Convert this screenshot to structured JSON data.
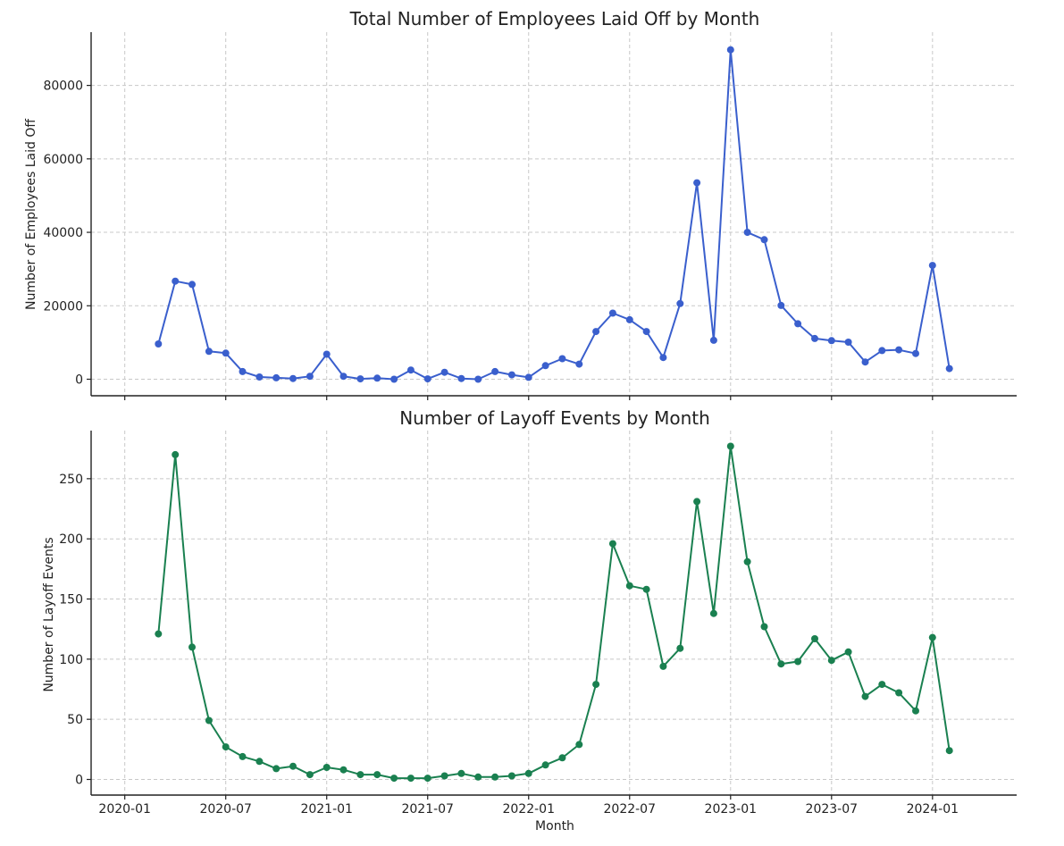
{
  "figure": {
    "xlabel": "Month"
  },
  "x_tick_labels": [
    "2020-01",
    "2020-07",
    "2021-01",
    "2021-07",
    "2022-01",
    "2022-07",
    "2023-01",
    "2023-07",
    "2024-01"
  ],
  "chart_data": [
    {
      "type": "line",
      "title": "Total Number of Employees Laid Off by Month",
      "xlabel": "",
      "ylabel": "Number of Employees Laid Off",
      "color": "#3a5fcd",
      "ylim": [
        -4500,
        94500
      ],
      "yticks": [
        0,
        20000,
        40000,
        60000,
        80000
      ],
      "grid": true,
      "x": [
        "2020-03",
        "2020-04",
        "2020-05",
        "2020-06",
        "2020-07",
        "2020-08",
        "2020-09",
        "2020-10",
        "2020-11",
        "2020-12",
        "2021-01",
        "2021-02",
        "2021-03",
        "2021-04",
        "2021-05",
        "2021-06",
        "2021-07",
        "2021-08",
        "2021-09",
        "2021-10",
        "2021-11",
        "2021-12",
        "2022-01",
        "2022-02",
        "2022-03",
        "2022-04",
        "2022-05",
        "2022-06",
        "2022-07",
        "2022-08",
        "2022-09",
        "2022-10",
        "2022-11",
        "2022-12",
        "2023-01",
        "2023-02",
        "2023-03",
        "2023-04",
        "2023-05",
        "2023-06",
        "2023-07",
        "2023-08",
        "2023-09",
        "2023-10",
        "2023-11",
        "2023-12",
        "2024-01",
        "2024-02"
      ],
      "values": [
        9600,
        26700,
        25800,
        7600,
        7100,
        2100,
        600,
        400,
        200,
        800,
        6800,
        800,
        100,
        300,
        0,
        2500,
        100,
        1900,
        200,
        0,
        2100,
        1200,
        500,
        3700,
        5600,
        4100,
        13000,
        18000,
        16200,
        13000,
        5900,
        20600,
        53500,
        10600,
        89700,
        40000,
        38000,
        20100,
        15100,
        11100,
        10500,
        10100,
        4700,
        7800,
        8000,
        7000,
        31000,
        2900
      ]
    },
    {
      "type": "line",
      "title": "Number of Layoff Events by Month",
      "xlabel": "Month",
      "ylabel": "Number of Layoff Events",
      "color": "#1a8050",
      "ylim": [
        -13,
        290
      ],
      "yticks": [
        0,
        50,
        100,
        150,
        200,
        250
      ],
      "grid": true,
      "x": [
        "2020-03",
        "2020-04",
        "2020-05",
        "2020-06",
        "2020-07",
        "2020-08",
        "2020-09",
        "2020-10",
        "2020-11",
        "2020-12",
        "2021-01",
        "2021-02",
        "2021-03",
        "2021-04",
        "2021-05",
        "2021-06",
        "2021-07",
        "2021-08",
        "2021-09",
        "2021-10",
        "2021-11",
        "2021-12",
        "2022-01",
        "2022-02",
        "2022-03",
        "2022-04",
        "2022-05",
        "2022-06",
        "2022-07",
        "2022-08",
        "2022-09",
        "2022-10",
        "2022-11",
        "2022-12",
        "2023-01",
        "2023-02",
        "2023-03",
        "2023-04",
        "2023-05",
        "2023-06",
        "2023-07",
        "2023-08",
        "2023-09",
        "2023-10",
        "2023-11",
        "2023-12",
        "2024-01",
        "2024-02"
      ],
      "values": [
        121,
        270,
        110,
        49,
        27,
        19,
        15,
        9,
        11,
        4,
        10,
        8,
        4,
        4,
        1,
        1,
        1,
        3,
        5,
        2,
        2,
        3,
        5,
        12,
        18,
        29,
        79,
        196,
        161,
        158,
        94,
        109,
        231,
        138,
        277,
        181,
        127,
        96,
        98,
        117,
        99,
        106,
        69,
        79,
        72,
        57,
        118,
        24
      ]
    }
  ]
}
